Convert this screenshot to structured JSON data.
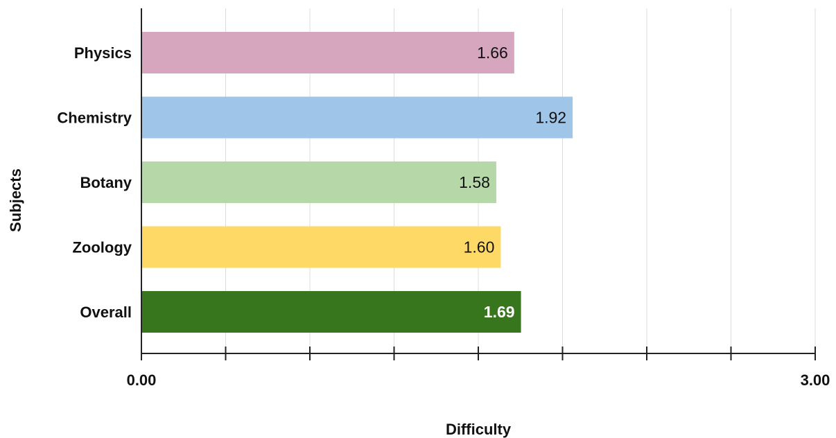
{
  "chart_data": {
    "type": "bar",
    "orientation": "horizontal",
    "categories": [
      "Physics",
      "Chemistry",
      "Botany",
      "Zoology",
      "Overall"
    ],
    "values": [
      1.66,
      1.92,
      1.58,
      1.6,
      1.69
    ],
    "value_labels": [
      "1.66",
      "1.92",
      "1.58",
      "1.60",
      "1.69"
    ],
    "bar_colors": [
      "#d5a6bd",
      "#9fc5e8",
      "#b6d7a8",
      "#ffd966",
      "#38761d"
    ],
    "value_label_colors": [
      "#111111",
      "#111111",
      "#111111",
      "#111111",
      "#ffffff"
    ],
    "xlabel": "Difficulty",
    "ylabel": "Subjects",
    "xlim": [
      0,
      3
    ],
    "x_tick_labels": [
      "0.00",
      "3.00"
    ],
    "grid": true,
    "legend": "none"
  }
}
